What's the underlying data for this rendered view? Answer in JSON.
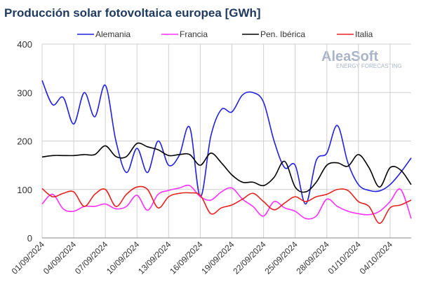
{
  "chart_data": {
    "type": "line",
    "title": "Producción solar fotovoltaica europea [GWh]",
    "logo": "AleaSoft",
    "logo_subtitle": "ENERGY FORECASTING",
    "categories": [
      "01/09/2024",
      null,
      null,
      "04/09/2024",
      null,
      null,
      "07/09/2024",
      null,
      null,
      "10/09/2024",
      null,
      null,
      "13/09/2024",
      null,
      null,
      "16/09/2024",
      null,
      null,
      "19/09/2024",
      null,
      null,
      "22/09/2024",
      null,
      null,
      "25/09/2024",
      null,
      null,
      "28/09/2024",
      null,
      null,
      "01/10/2024",
      null,
      null,
      "04/10/2024",
      null,
      null
    ],
    "ylim": [
      0,
      400
    ],
    "yticks": [
      0,
      100,
      200,
      300,
      400
    ],
    "grid": true,
    "series": [
      {
        "name": "Alemania",
        "color": "#2020e0",
        "values": [
          325,
          275,
          290,
          235,
          300,
          250,
          315,
          200,
          135,
          185,
          135,
          200,
          150,
          170,
          228,
          85,
          210,
          265,
          260,
          295,
          300,
          280,
          200,
          145,
          150,
          70,
          160,
          175,
          232,
          155,
          110,
          98,
          97,
          110,
          135,
          165
        ]
      },
      {
        "name": "Francia",
        "color": "#ff30ff",
        "values": [
          70,
          90,
          60,
          55,
          65,
          65,
          70,
          60,
          65,
          88,
          57,
          90,
          98,
          103,
          108,
          85,
          78,
          95,
          103,
          80,
          65,
          45,
          75,
          62,
          55,
          40,
          45,
          80,
          65,
          55,
          50,
          48,
          55,
          75,
          100,
          40
        ]
      },
      {
        "name": "Pen. Ibérica",
        "color": "#000000",
        "values": [
          167,
          170,
          170,
          170,
          172,
          172,
          190,
          168,
          168,
          195,
          188,
          182,
          170,
          172,
          172,
          150,
          175,
          155,
          130,
          115,
          115,
          108,
          125,
          158,
          105,
          95,
          115,
          150,
          155,
          148,
          172,
          145,
          105,
          145,
          140,
          110
        ]
      },
      {
        "name": "Italia",
        "color": "#e82020",
        "values": [
          102,
          85,
          92,
          95,
          65,
          90,
          100,
          65,
          90,
          105,
          100,
          62,
          85,
          92,
          93,
          88,
          50,
          62,
          68,
          80,
          92,
          75,
          58,
          72,
          85,
          75,
          85,
          90,
          100,
          98,
          75,
          65,
          30,
          62,
          68,
          78
        ]
      }
    ]
  }
}
